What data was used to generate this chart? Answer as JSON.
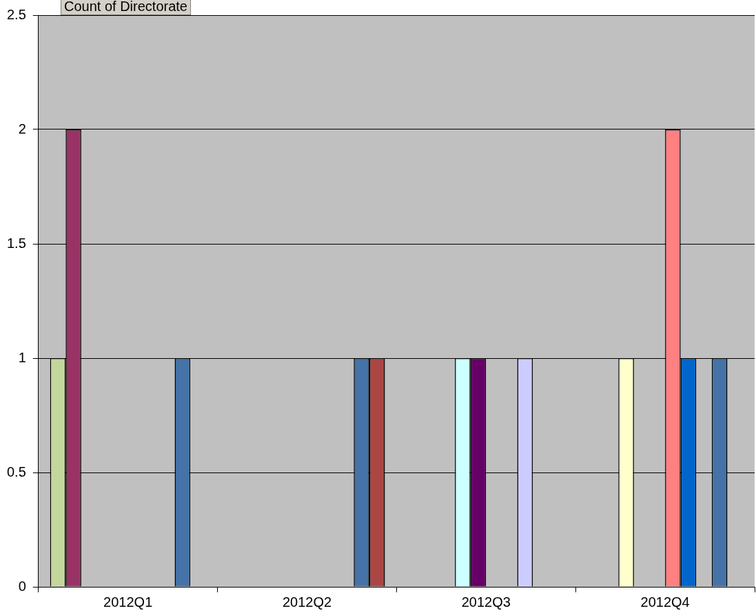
{
  "chart_data": {
    "type": "bar",
    "title": "Count of Directorate",
    "categories": [
      "2012Q1",
      "2012Q2",
      "2012Q3",
      "2012Q4"
    ],
    "series": [
      {
        "color": "#c3d69b",
        "values": [
          1,
          null,
          null,
          null
        ]
      },
      {
        "color": "#993366",
        "values": [
          2,
          null,
          null,
          null
        ]
      },
      {
        "color": "#ffffcc",
        "values": [
          null,
          null,
          null,
          1
        ]
      },
      {
        "color": "#ccffff",
        "values": [
          null,
          null,
          1,
          null
        ]
      },
      {
        "color": "#660066",
        "values": [
          null,
          null,
          1,
          null
        ]
      },
      {
        "color": "#ff8080",
        "values": [
          null,
          null,
          null,
          2
        ]
      },
      {
        "color": "#0066cc",
        "values": [
          null,
          null,
          null,
          1
        ]
      },
      {
        "color": "#ccccff",
        "values": [
          null,
          null,
          1,
          null
        ]
      },
      {
        "color": "#4572a7",
        "values": [
          1,
          1,
          null,
          1
        ]
      },
      {
        "color": "#aa4643",
        "values": [
          null,
          1,
          null,
          null
        ]
      }
    ],
    "ylim": [
      0,
      2.5
    ],
    "yticks": [
      0,
      0.5,
      1,
      1.5,
      2,
      2.5
    ],
    "grid": "y",
    "legend": false
  }
}
